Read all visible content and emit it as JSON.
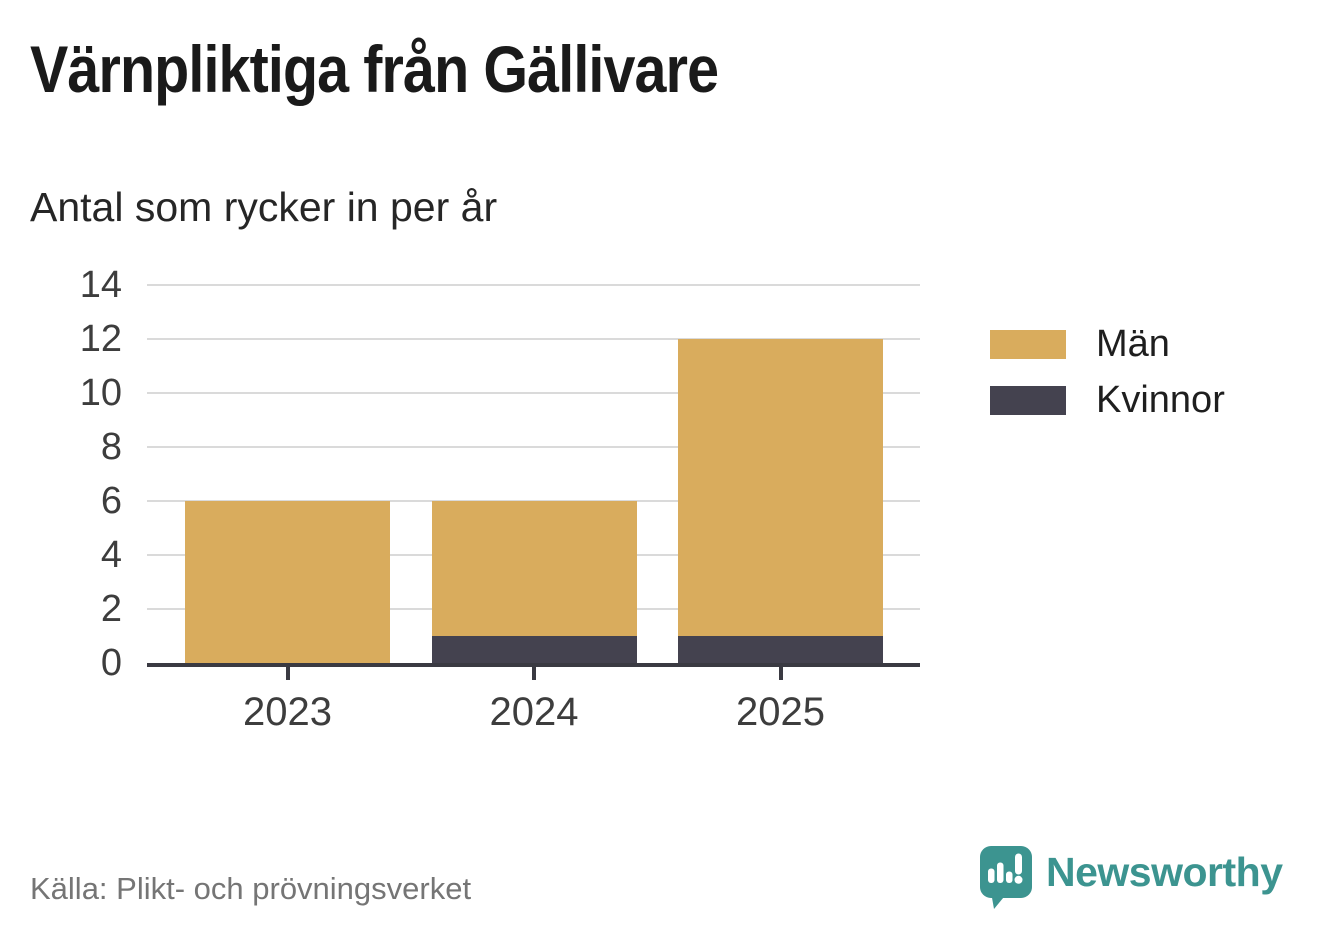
{
  "chart_data": {
    "type": "bar",
    "stacked": true,
    "title": "Värnpliktiga från Gällivare",
    "subtitle": "Antal som rycker in per år",
    "categories": [
      "2023",
      "2024",
      "2025"
    ],
    "series": [
      {
        "name": "Män",
        "color": "#d9ac5d",
        "values": [
          6,
          5,
          11
        ]
      },
      {
        "name": "Kvinnor",
        "color": "#44424f",
        "values": [
          0,
          1,
          1
        ]
      }
    ],
    "stack_order_bottom_to_top": [
      "Kvinnor",
      "Män"
    ],
    "totals": [
      6,
      6,
      12
    ],
    "xlabel": "",
    "ylabel": "",
    "ylim": [
      0,
      14
    ],
    "yticks": [
      0,
      2,
      4,
      6,
      8,
      10,
      12,
      14
    ],
    "grid": true,
    "legend_position": "right"
  },
  "footer": {
    "source": "Källa: Plikt- och prövningsverket",
    "brand": "Newsworthy"
  },
  "colors": {
    "background": "#ffffff",
    "title_text": "#1a1a1a",
    "subtitle_text": "#262626",
    "axis_label_text": "#3d3d3d",
    "axis_line": "#3a3a42",
    "gridline": "#dadada",
    "source_text": "#757575",
    "brand_teal": "#3c9490"
  }
}
